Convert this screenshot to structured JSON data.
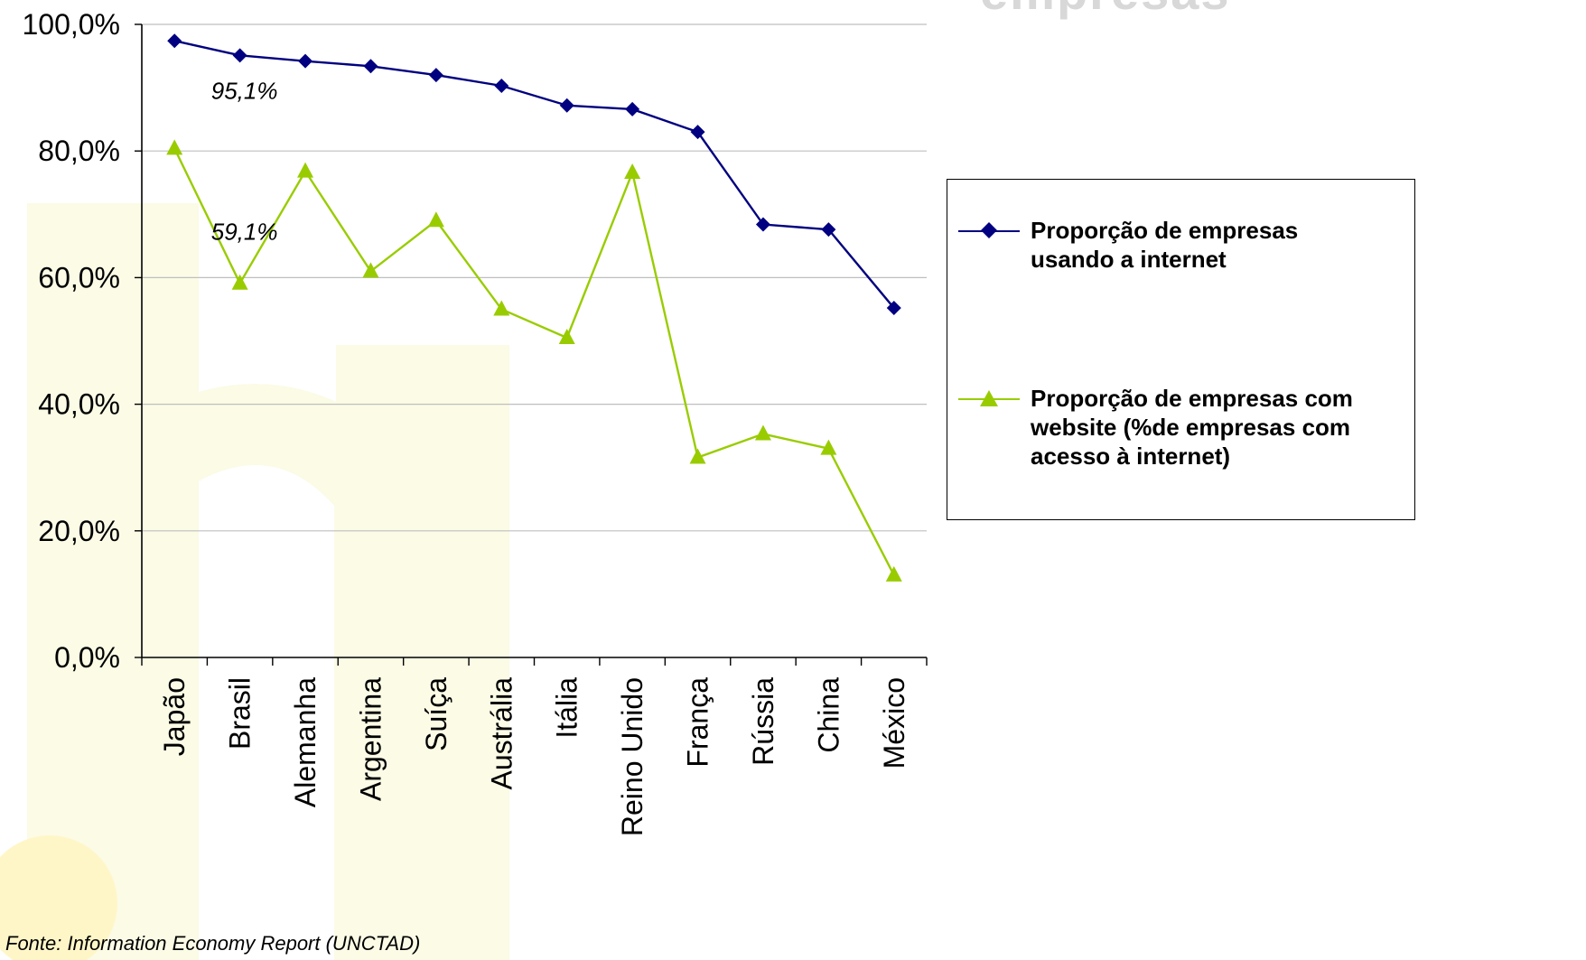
{
  "header": {
    "partial_title": "empresas"
  },
  "chart_data": {
    "type": "line",
    "categories": [
      "Japão",
      "Brasil",
      "Alemanha",
      "Argentina",
      "Suíça",
      "Austrália",
      "Itália",
      "Reino Unido",
      "França",
      "Rússia",
      "China",
      "México"
    ],
    "y_ticks": [
      "0,0%",
      "20,0%",
      "40,0%",
      "60,0%",
      "80,0%",
      "100,0%"
    ],
    "ylim": [
      0,
      100
    ],
    "grid": true,
    "legend_position": "right",
    "series": [
      {
        "name": "Proporção de empresas usando a internet",
        "color": "#000080",
        "marker": "diamond",
        "values": [
          97.4,
          95.1,
          94.2,
          93.4,
          92.0,
          90.3,
          87.2,
          86.6,
          83.0,
          68.4,
          67.6,
          55.2
        ]
      },
      {
        "name": "Proporção de empresas com website (%de empresas com acesso à internet)",
        "color": "#99cc00",
        "marker": "triangle",
        "values": [
          80.4,
          59.1,
          76.8,
          61.0,
          69.0,
          55.0,
          50.5,
          76.6,
          31.6,
          35.3,
          33.0,
          13.0
        ]
      }
    ],
    "annotations": [
      {
        "text": "95,1%",
        "series": 0,
        "category": "Brasil"
      },
      {
        "text": "59,1%",
        "series": 1,
        "category": "Brasil"
      }
    ]
  },
  "legend": {
    "items": [
      {
        "label": "Proporção de empresas\nusando a internet"
      },
      {
        "label": "Proporção de empresas com\nwebsite (%de empresas com\nacesso à internet)"
      }
    ]
  },
  "footer": {
    "source": "Fonte: Information Economy Report (UNCTAD)"
  },
  "colors": {
    "watermark": "#fbfbe6",
    "watermark_dot": "#fff6c8",
    "grid": "#bfbfbf",
    "axis": "#000000"
  }
}
